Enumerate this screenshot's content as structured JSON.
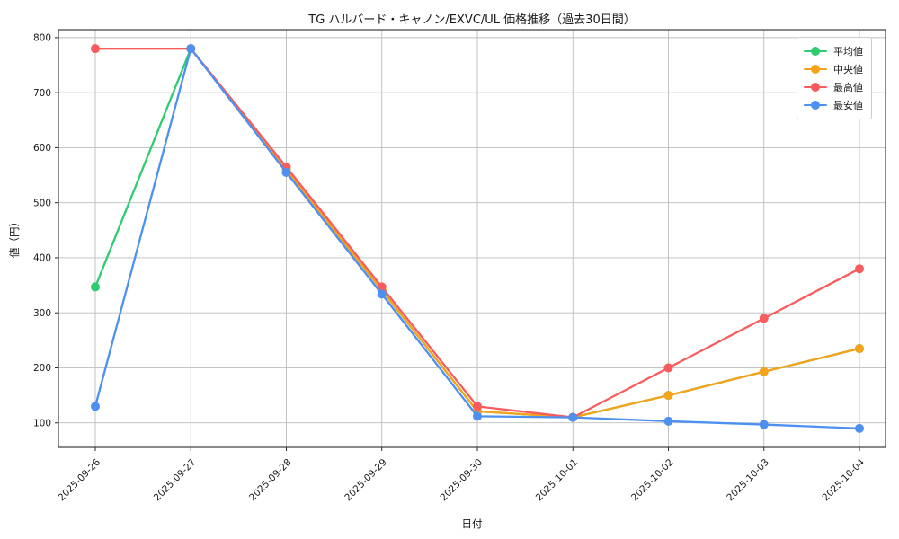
{
  "chart_data": {
    "type": "line",
    "title": "TG ハルバード・キャノン/EXVC/UL 価格推移（過去30日間）",
    "xlabel": "日付",
    "ylabel": "値（円）",
    "x": [
      "2025-09-26",
      "2025-09-27",
      "2025-09-28",
      "2025-09-29",
      "2025-09-30",
      "2025-10-01",
      "2025-10-02",
      "2025-10-03",
      "2025-10-04"
    ],
    "series": [
      {
        "key": "average",
        "name": "平均値",
        "color": "#2ecc71",
        "values": [
          347,
          780,
          560,
          341,
          121,
          110,
          150,
          193,
          235
        ]
      },
      {
        "key": "median",
        "name": "中央値",
        "color": "#f5a31b",
        "values": [
          780,
          780,
          560,
          341,
          121,
          110,
          150,
          193,
          235
        ]
      },
      {
        "key": "max",
        "name": "最高値",
        "color": "#f85c5c",
        "values": [
          780,
          780,
          565,
          347,
          130,
          110,
          200,
          290,
          380
        ]
      },
      {
        "key": "min",
        "name": "最安値",
        "color": "#4d90f0",
        "values": [
          130,
          780,
          555,
          334,
          112,
          110,
          103,
          97,
          90
        ]
      }
    ],
    "ylim": [
      55.5,
      814.5
    ],
    "yticks": [
      100,
      200,
      300,
      400,
      500,
      600,
      700,
      800
    ],
    "grid": true,
    "legend_position": "upper right",
    "grid_color": "#bdbdbd",
    "spine_color": "#2a2a2a",
    "tick_text_color": "#191919"
  }
}
